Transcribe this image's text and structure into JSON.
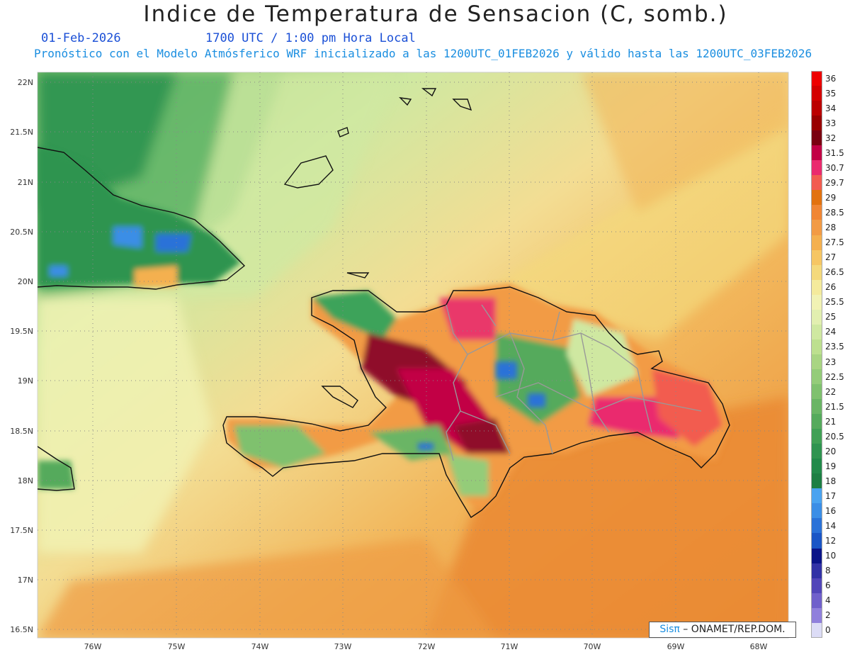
{
  "header": {
    "title": "Indice de Temperatura de Sensacion (C, somb.)",
    "date": "01-Feb-2026",
    "time": "1700 UTC / 1:00 pm Hora Local",
    "forecast_note": "Pronóstico con el Modelo Atmósferico WRF inicializado a las 1200UTC_01FEB2026 y válido hasta las  1200UTC_03FEB2026"
  },
  "map": {
    "lat_labels": [
      "22N",
      "21.5N",
      "21N",
      "20.5N",
      "20N",
      "19.5N",
      "19N",
      "18.5N",
      "18N",
      "17.5N",
      "17N",
      "16.5N"
    ],
    "lon_labels": [
      "76W",
      "75W",
      "74W",
      "73W",
      "72W",
      "71W",
      "70W",
      "69W",
      "68W"
    ],
    "colors": {
      "ocean_warm": "#ea8b33",
      "ocean_mid": "#f2b75c",
      "ocean_pale": "#f3dd93",
      "cool_green": "#3ea35a",
      "hot_red": "#e9386a",
      "hottest": "#8f0b2a",
      "coast": "#111111",
      "border": "#9a9a9a"
    }
  },
  "legend": {
    "labels": [
      "36",
      "35",
      "34",
      "33",
      "32",
      "31.5",
      "30.7",
      "29.7",
      "29",
      "28.5",
      "28",
      "27.5",
      "27",
      "26.5",
      "26",
      "25.5",
      "25",
      "24",
      "23.5",
      "23",
      "22.5",
      "22",
      "21.5",
      "21",
      "20.5",
      "20",
      "19",
      "18",
      "17",
      "16",
      "14",
      "12",
      "10",
      "8",
      "6",
      "4",
      "2",
      "0"
    ],
    "colors": [
      "#ee0000",
      "#d40000",
      "#bb0000",
      "#990000",
      "#7a0010",
      "#c20045",
      "#ea2a6e",
      "#f25c50",
      "#e2720f",
      "#f08634",
      "#f29b45",
      "#f4b04f",
      "#f6c664",
      "#f4d97c",
      "#f4ea9c",
      "#f1f2b4",
      "#e2efb0",
      "#cfe8a1",
      "#bde08f",
      "#a9d583",
      "#94cc79",
      "#7fc16e",
      "#6ab565",
      "#55aa5c",
      "#40a055",
      "#2f9450",
      "#228a4a",
      "#1d7f43",
      "#4aa3f0",
      "#3b8ee6",
      "#2a72d8",
      "#1a56c6",
      "#0b1488",
      "#3232a6",
      "#5246b9",
      "#7060cb",
      "#9080dc",
      "#dcdcf6"
    ]
  },
  "credit": {
    "brand": "Sisπ",
    "text": " – ONAMET/REP.DOM."
  }
}
